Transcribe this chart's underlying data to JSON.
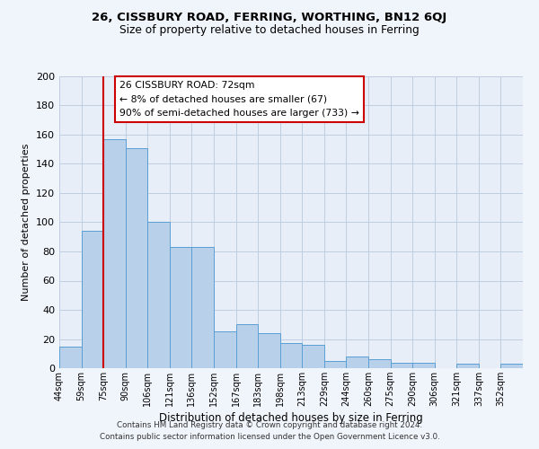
{
  "title1": "26, CISSBURY ROAD, FERRING, WORTHING, BN12 6QJ",
  "title2": "Size of property relative to detached houses in Ferring",
  "xlabel": "Distribution of detached houses by size in Ferring",
  "ylabel": "Number of detached properties",
  "bar_labels": [
    "44sqm",
    "59sqm",
    "75sqm",
    "90sqm",
    "106sqm",
    "121sqm",
    "136sqm",
    "152sqm",
    "167sqm",
    "183sqm",
    "198sqm",
    "213sqm",
    "229sqm",
    "244sqm",
    "260sqm",
    "275sqm",
    "290sqm",
    "306sqm",
    "321sqm",
    "337sqm",
    "352sqm"
  ],
  "bar_heights": [
    15,
    94,
    157,
    151,
    100,
    83,
    83,
    25,
    30,
    24,
    17,
    16,
    5,
    8,
    6,
    4,
    4,
    0,
    3,
    0,
    3
  ],
  "bar_color": "#b8d0ea",
  "bar_edge_color": "#5a9fd4",
  "bar_width": 1.0,
  "vline_x": 2.0,
  "vline_color": "#cc0000",
  "ylim": [
    0,
    200
  ],
  "yticks": [
    0,
    20,
    40,
    60,
    80,
    100,
    120,
    140,
    160,
    180,
    200
  ],
  "annotation_box_title": "26 CISSBURY ROAD: 72sqm",
  "annotation_line1": "← 8% of detached houses are smaller (67)",
  "annotation_line2": "90% of semi-detached houses are larger (733) →",
  "footer1": "Contains HM Land Registry data © Crown copyright and database right 2024.",
  "footer2": "Contains public sector information licensed under the Open Government Licence v3.0.",
  "bg_color": "#f0f4fb",
  "plot_bg_color": "#e8eef8",
  "grid_color": "#c0cce0"
}
